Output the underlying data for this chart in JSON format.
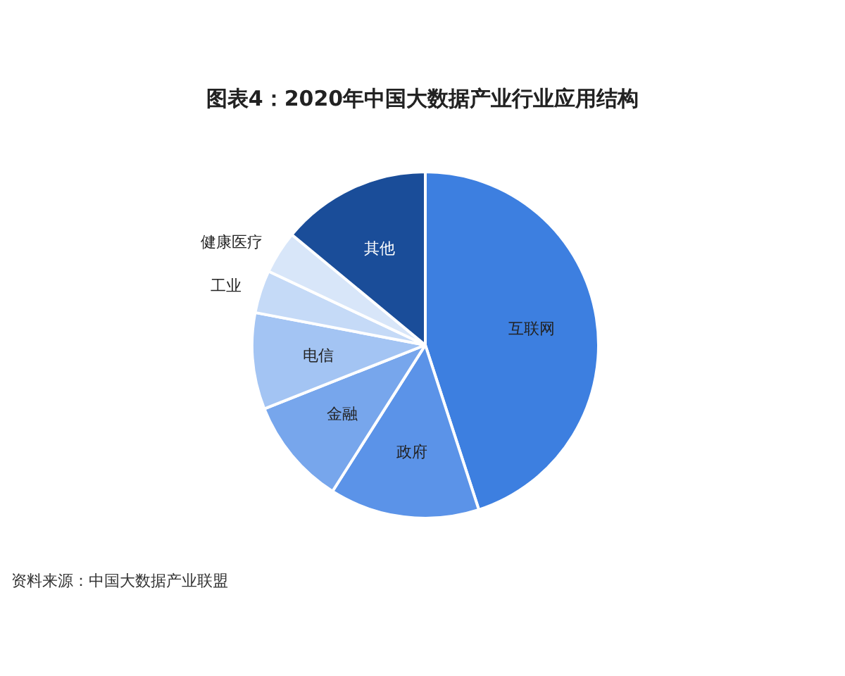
{
  "chart_data": {
    "type": "pie",
    "title": "图表4：2020年中国大数据产业行业应用结构",
    "categories": [
      "互联网",
      "政府",
      "金融",
      "电信",
      "工业",
      "健康医疗",
      "其他"
    ],
    "values": [
      45,
      14,
      10,
      9,
      4,
      4,
      14
    ],
    "colors": [
      "#3d7fe0",
      "#5b93e8",
      "#77a6ec",
      "#a3c4f3",
      "#c5daf7",
      "#d8e6f9",
      "#1a4d99"
    ],
    "annotations": [
      "资料来源：中国大数据产业联盟"
    ]
  }
}
